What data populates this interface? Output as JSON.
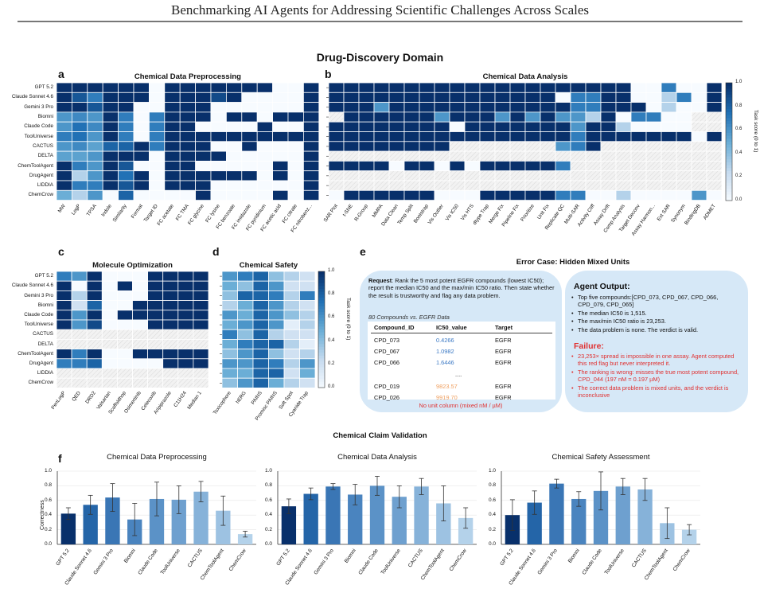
{
  "header": "Benchmarking AI Agents for Addressing Scientific Challenges Across Scales",
  "domain_title": "Drug-Discovery Domain",
  "panel_labels": {
    "a": "a",
    "b": "b",
    "c": "c",
    "d": "d",
    "e": "e",
    "f": "f"
  },
  "colorbar": {
    "label": "Task score (0 to 1)",
    "ticks": [
      "1.0",
      "0.8",
      "0.6",
      "0.4",
      "0.2",
      "0.0"
    ]
  },
  "agents": [
    "GPT 5.2",
    "Claude Sonnet 4.6",
    "Gemini 3 Pro",
    "Biomni",
    "Claude Code",
    "ToolUniverse",
    "CACTUS",
    "DELTA",
    "ChemToolAgent",
    "DrugAgent",
    "LIDDIA",
    "ChemCrow"
  ],
  "heatmap_a": {
    "title": "Chemical Data Preprocessing",
    "columns": [
      "MW",
      "LogP",
      "TPSA",
      "Indole",
      "Similarity",
      "Format",
      "Target ID",
      "FC acetate",
      "FC TMA",
      "FC glycine",
      "FC lysine",
      "FC benzoate",
      "FC imidazole",
      "FC pyridinium",
      "FC acetic acid",
      "FC citrate",
      "FC nitrobenz..."
    ],
    "values": [
      [
        1,
        1,
        1,
        1,
        1,
        1,
        0,
        1,
        1,
        1,
        1,
        1,
        1,
        1,
        0,
        0,
        1
      ],
      [
        1,
        0.85,
        0.7,
        1,
        1,
        1,
        0,
        1,
        1,
        1,
        0.9,
        1,
        0,
        0,
        0,
        0,
        1
      ],
      [
        1,
        1,
        0.85,
        1,
        1,
        0,
        0,
        1,
        1,
        1,
        0,
        0,
        0,
        0,
        0,
        0,
        1
      ],
      [
        0.6,
        0.65,
        0.6,
        1,
        0.7,
        0,
        0.7,
        1,
        1,
        1,
        0,
        1,
        1,
        0,
        1,
        1,
        1
      ],
      [
        0.6,
        0.75,
        0.65,
        1,
        0.7,
        0,
        0.7,
        1,
        1,
        0,
        0,
        0,
        0,
        1,
        0,
        0,
        1
      ],
      [
        0.7,
        0.75,
        0.6,
        1,
        0.7,
        0,
        0.7,
        1,
        1,
        1,
        1,
        1,
        1,
        1,
        1,
        1,
        1
      ],
      [
        0.6,
        0.65,
        0.55,
        0.8,
        0.8,
        1,
        0.7,
        1,
        1,
        1,
        0,
        0,
        1,
        0,
        0,
        0,
        1
      ],
      [
        0.55,
        0.55,
        0.6,
        1,
        1,
        1,
        0,
        1,
        1,
        1,
        1,
        0,
        0,
        0,
        0,
        0,
        1
      ],
      [
        1,
        0.7,
        0.6,
        1,
        0.85,
        0,
        0,
        1,
        1,
        0,
        0,
        0,
        0,
        0,
        1,
        0,
        1
      ],
      [
        1,
        0.3,
        0.6,
        1,
        0.75,
        1,
        0,
        1,
        1,
        1,
        1,
        1,
        1,
        0,
        1,
        0,
        1
      ],
      [
        1,
        0.7,
        0.7,
        1,
        0.85,
        1,
        0,
        1,
        1,
        1,
        0,
        0,
        0,
        0,
        0,
        0,
        1
      ],
      [
        0.5,
        0.3,
        0.6,
        0,
        0.8,
        0,
        0,
        0,
        0,
        1,
        0,
        0,
        0,
        0,
        1,
        0,
        1
      ]
    ]
  },
  "heatmap_b": {
    "title": "Chemical Data Analysis",
    "columns": [
      "SAR Plot",
      "t-SNE",
      "R-Group",
      "MMPA",
      "Data Clean",
      "Temp Split",
      "Bootstrap",
      "Vis Outlier",
      "Vis IC50",
      "Vis HTS",
      "dtype Trap",
      "Merge Fix",
      "Pipeline Fix",
      "Prioritize",
      "Unit Fix",
      "Replicate QC",
      "Multi-SAR",
      "Activity Cliff",
      "Assay Drift",
      "Comp Analysis",
      "Target Deconv",
      "Assay Harmon...",
      "Ext SAR",
      "Synonym",
      "BindingDB",
      "ADMET"
    ],
    "values": [
      [
        1,
        1,
        1,
        1,
        1,
        1,
        1,
        1,
        1,
        1,
        1,
        1,
        1,
        1,
        1,
        1,
        1,
        1,
        1,
        1,
        0,
        0,
        0.7,
        0,
        0,
        1
      ],
      [
        1,
        1,
        1,
        1,
        1,
        1,
        1,
        1,
        1,
        1,
        1,
        1,
        1,
        1,
        1,
        0,
        0.7,
        0.7,
        1,
        1,
        0,
        0,
        0.3,
        0.7,
        0,
        1
      ],
      [
        1,
        1,
        1,
        0.6,
        1,
        1,
        1,
        1,
        1,
        1,
        1,
        1,
        1,
        1,
        1,
        1,
        0.7,
        0.7,
        1,
        1,
        1,
        0,
        0.3,
        0,
        0,
        1
      ],
      [
        -1,
        1,
        1,
        1,
        1,
        1,
        1,
        0.6,
        1,
        1,
        1,
        0.6,
        1,
        0.6,
        1,
        0.6,
        0.6,
        0.3,
        1,
        0,
        0.7,
        0.7,
        0,
        0,
        -1,
        -1
      ],
      [
        1,
        1,
        1,
        1,
        1,
        1,
        1,
        1,
        0,
        1,
        1,
        1,
        1,
        1,
        1,
        1,
        0.6,
        1,
        1,
        0.3,
        0,
        0,
        0,
        0,
        -1,
        -1
      ],
      [
        1,
        1,
        1,
        1,
        1,
        1,
        1,
        1,
        1,
        1,
        1,
        1,
        1,
        1,
        1,
        1,
        0.7,
        1,
        1,
        1,
        1,
        1,
        1,
        1,
        0,
        1
      ],
      [
        1,
        1,
        1,
        1,
        1,
        1,
        1,
        1,
        -1,
        -1,
        -1,
        -1,
        -1,
        -1,
        -1,
        0.6,
        0.7,
        1,
        -1,
        -1,
        -1,
        -1,
        -1,
        -1,
        -1,
        -1
      ],
      [
        -1,
        -1,
        -1,
        -1,
        -1,
        -1,
        -1,
        -1,
        -1,
        -1,
        -1,
        -1,
        -1,
        -1,
        -1,
        -1,
        -1,
        -1,
        -1,
        -1,
        -1,
        -1,
        -1,
        -1,
        -1,
        -1
      ],
      [
        1,
        1,
        1,
        1,
        0,
        1,
        1,
        0,
        1,
        0,
        1,
        1,
        1,
        1,
        1,
        0.7,
        -1,
        -1,
        -1,
        -1,
        -1,
        -1,
        -1,
        -1,
        -1,
        -1
      ],
      [
        -1,
        -1,
        -1,
        -1,
        -1,
        -1,
        -1,
        -1,
        -1,
        -1,
        -1,
        -1,
        -1,
        -1,
        -1,
        -1,
        -1,
        -1,
        -1,
        -1,
        -1,
        -1,
        -1,
        -1,
        -1,
        -1
      ],
      [
        -1,
        -1,
        -1,
        -1,
        -1,
        -1,
        -1,
        -1,
        -1,
        -1,
        -1,
        -1,
        -1,
        -1,
        -1,
        -1,
        -1,
        -1,
        -1,
        -1,
        -1,
        -1,
        -1,
        -1,
        -1,
        -1
      ],
      [
        0,
        1,
        1,
        1,
        1,
        1,
        1,
        0,
        0,
        0,
        1,
        1,
        1,
        1,
        1,
        0.7,
        0.7,
        0,
        0,
        0.3,
        0,
        0,
        0,
        0,
        0.6,
        0
      ]
    ]
  },
  "heatmap_c": {
    "title": "Molecule Optimization",
    "columns": [
      "PenLogP",
      "QED",
      "DRD2",
      "Valsartan",
      "Scaffoldhop",
      "Osimertinib",
      "Celecoxib",
      "Aripiprazole",
      "C11H24",
      "Median 1"
    ],
    "values": [
      [
        0.7,
        0.6,
        1,
        0,
        0,
        0,
        1,
        1,
        1,
        1
      ],
      [
        1,
        0,
        1,
        0,
        1,
        0,
        1,
        1,
        1,
        1
      ],
      [
        1,
        0.3,
        1,
        0,
        0,
        0,
        1,
        1,
        1,
        1
      ],
      [
        1,
        0.2,
        0.8,
        0,
        0,
        1,
        1,
        1,
        1,
        1
      ],
      [
        1,
        0.6,
        1,
        0,
        1,
        1,
        1,
        1,
        1,
        1
      ],
      [
        1,
        0.6,
        0.9,
        0,
        0,
        0,
        1,
        1,
        1,
        1
      ],
      [
        -1,
        -1,
        -1,
        -1,
        -1,
        -1,
        -1,
        -1,
        -1,
        -1
      ],
      [
        -1,
        -1,
        -1,
        -1,
        -1,
        -1,
        -1,
        -1,
        -1,
        -1
      ],
      [
        1,
        0.7,
        1,
        0,
        0,
        1,
        1,
        1,
        1,
        1
      ],
      [
        0.7,
        0.7,
        0.8,
        0,
        0,
        0,
        0,
        1,
        1,
        1
      ],
      [
        -1,
        -1,
        -1,
        -1,
        -1,
        -1,
        -1,
        -1,
        -1,
        -1
      ],
      [
        -1,
        -1,
        -1,
        -1,
        -1,
        -1,
        -1,
        -1,
        -1,
        -1
      ]
    ]
  },
  "heatmap_d": {
    "title": "Chemical Safety Assessment",
    "columns": [
      "Toxicophore",
      "hERG",
      "PAINS",
      "Promisc PAINS",
      "Soft Spot",
      "Cyanide Trap"
    ],
    "values": [
      [
        0.6,
        0.7,
        0.8,
        0.4,
        0.3,
        0.2
      ],
      [
        0.5,
        0.4,
        0.8,
        0.6,
        0.2,
        0.2
      ],
      [
        0.4,
        0.8,
        0.8,
        0.7,
        0.3,
        0.7
      ],
      [
        0.3,
        0.5,
        0.8,
        0.6,
        0.3,
        0.2
      ],
      [
        0.6,
        0.5,
        0.8,
        0.6,
        0.4,
        0.3
      ],
      [
        0.5,
        0.6,
        0.8,
        0.6,
        0.1,
        0.3
      ],
      [
        0.7,
        0.4,
        0.8,
        0.3,
        0.2,
        0.2
      ],
      [
        0.5,
        0.7,
        0.8,
        0.8,
        0.3,
        0.1
      ],
      [
        0.4,
        0.6,
        0.8,
        0.4,
        0.2,
        0.3
      ],
      [
        0.6,
        0.6,
        0.8,
        0.7,
        0.3,
        0.6
      ],
      [
        0.5,
        0.5,
        0.8,
        0.8,
        0.2,
        0.5
      ],
      [
        0.4,
        0.6,
        0.8,
        0.5,
        0.3,
        0.2
      ]
    ]
  },
  "error_case": {
    "title": "Error Case: Hidden Mixed Units",
    "request_label": "Request",
    "request_text": ": Rank the 5 most potent EGFR compounds (lowest IC50); report the median IC50 and the max/min IC50 ratio. Then state whether the result is trustworthy and flag any data problem.",
    "data_caption": "80 Compounds vs. EGFR Data",
    "table_headers": [
      "Compound_ID",
      "IC50_value",
      "Target"
    ],
    "table_rows": [
      [
        "CPD_073",
        "0.4266",
        "EGFR"
      ],
      [
        "CPD_067",
        "1.0982",
        "EGFR"
      ],
      [
        "CPD_066",
        "1.6446",
        "EGFR"
      ],
      [
        "....",
        "",
        ""
      ],
      [
        "CPD_019",
        "9823.57",
        "EGFR"
      ],
      [
        "CPD_026",
        "9919.70",
        "EGFR"
      ]
    ],
    "no_unit": "No unit column (mixed nM / µM)",
    "agent_title": "Agent Output:",
    "agent_points": [
      "Top five compounds:[CPD_073, CPD_067, CPD_066, CPD_079, CPD_065]",
      "The median IC50 is 1,515.",
      "The max/min IC50 ratio is 23,253.",
      "The data problem is none. The verdict is valid."
    ],
    "failure_title": "Failure:",
    "failure_points": [
      "23,253× spread is impossible in one assay. Agent computed this red flag but never interpreted it.",
      "The ranking is wrong: misses the true most potent compound, CPD_044 (197 nM = 0.197 µM)",
      "The correct data problem is mixed units, and the verdict is inconclusive"
    ],
    "colors": {
      "blue_val": "#3a78c4",
      "orange_val": "#f0a060",
      "fail": "#e03030"
    }
  },
  "claim_title": "Chemical Claim Validation",
  "chart_data": [
    {
      "type": "bar",
      "title": "Chemical Data Preprocessing",
      "ylabel": "Correctness",
      "ylim": [
        0,
        1.0
      ],
      "categories": [
        "GPT 5.2",
        "Claude Sonnet 4.6",
        "Gemini 3 Pro",
        "Biomni",
        "Claude Code",
        "ToolUniverse",
        "CACTUS",
        "ChemToolAgent",
        "ChemCrow"
      ],
      "values": [
        0.42,
        0.54,
        0.64,
        0.34,
        0.62,
        0.61,
        0.72,
        0.46,
        0.14
      ],
      "errors": [
        0.08,
        0.13,
        0.19,
        0.22,
        0.23,
        0.19,
        0.14,
        0.2,
        0.04
      ]
    },
    {
      "type": "bar",
      "title": "Chemical Data Analysis",
      "ylabel": "",
      "ylim": [
        0,
        1.0
      ],
      "categories": [
        "GPT 5.2",
        "Claude Sonnet 4.6",
        "Gemini 3 Pro",
        "Biomni",
        "Claude Code",
        "ToolUniverse",
        "CACTUS",
        "ChemToolAgent",
        "ChemCrow"
      ],
      "values": [
        0.52,
        0.69,
        0.79,
        0.68,
        0.8,
        0.65,
        0.79,
        0.56,
        0.36
      ],
      "errors": [
        0.1,
        0.08,
        0.04,
        0.14,
        0.13,
        0.15,
        0.11,
        0.24,
        0.14
      ]
    },
    {
      "type": "bar",
      "title": "Chemical Safety Assessment",
      "ylabel": "",
      "ylim": [
        0,
        1.0
      ],
      "categories": [
        "GPT 5.2",
        "Claude Sonnet 4.6",
        "Gemini 3 Pro",
        "Biomni",
        "Claude Code",
        "ToolUniverse",
        "CACTUS",
        "ChemToolAgent",
        "ChemCrow"
      ],
      "values": [
        0.4,
        0.57,
        0.83,
        0.62,
        0.73,
        0.79,
        0.75,
        0.29,
        0.2
      ],
      "errors": [
        0.21,
        0.16,
        0.06,
        0.1,
        0.26,
        0.11,
        0.15,
        0.21,
        0.07
      ]
    }
  ]
}
